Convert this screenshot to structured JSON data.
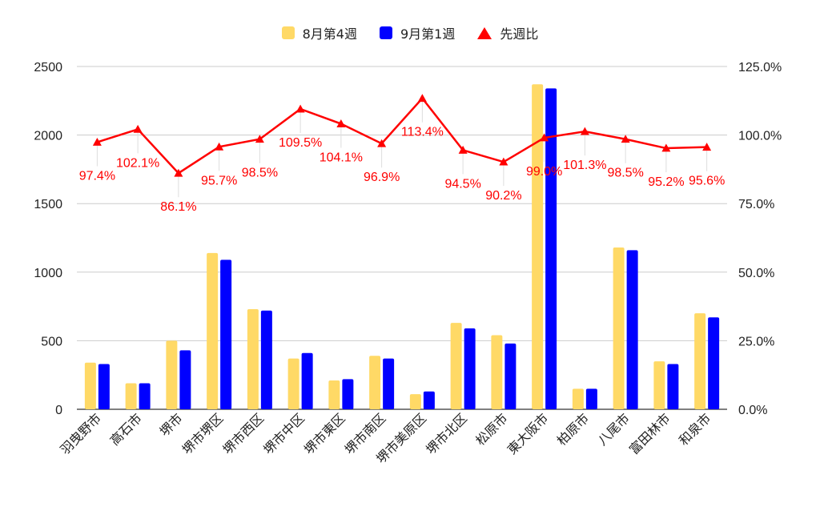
{
  "chart_data": {
    "type": "bar",
    "categories": [
      "羽曳野市",
      "高石市",
      "堺市",
      "堺市堺区",
      "堺市西区",
      "堺市中区",
      "堺市東区",
      "堺市南区",
      "堺市美原区",
      "堺市北区",
      "松原市",
      "東大阪市",
      "柏原市",
      "八尾市",
      "富田林市",
      "和泉市"
    ],
    "series": [
      {
        "name": "8月第4週",
        "type": "bar",
        "axis": "left",
        "color": "#ffd966",
        "values": [
          340,
          190,
          500,
          1140,
          730,
          370,
          210,
          390,
          110,
          630,
          540,
          2370,
          150,
          1180,
          350,
          700
        ]
      },
      {
        "name": "9月第1週",
        "type": "bar",
        "axis": "left",
        "color": "#0000ff",
        "values": [
          330,
          190,
          430,
          1090,
          720,
          410,
          220,
          370,
          130,
          590,
          480,
          2340,
          150,
          1160,
          330,
          670
        ]
      },
      {
        "name": "先週比",
        "type": "line",
        "axis": "right",
        "color": "#ff0000",
        "values": [
          97.4,
          102.1,
          86.1,
          95.7,
          98.5,
          109.5,
          104.1,
          96.9,
          113.4,
          94.5,
          90.2,
          99.0,
          101.3,
          98.5,
          95.2,
          95.6
        ],
        "labels": [
          "97.4%",
          "102.1%",
          "86.1%",
          "95.7%",
          "98.5%",
          "109.5%",
          "104.1%",
          "96.9%",
          "113.4%",
          "94.5%",
          "90.2%",
          "99.0%",
          "101.3%",
          "98.5%",
          "95.2%",
          "95.6%"
        ]
      }
    ],
    "y_left": {
      "min": 0,
      "max": 2500,
      "ticks": [
        0,
        500,
        1000,
        1500,
        2000,
        2500
      ],
      "tick_labels": [
        "0",
        "500",
        "1000",
        "1500",
        "2000",
        "2500"
      ]
    },
    "y_right": {
      "min": 0,
      "max": 125,
      "ticks": [
        0,
        25,
        50,
        75,
        100,
        125
      ],
      "tick_labels": [
        "0.0%",
        "25.0%",
        "50.0%",
        "75.0%",
        "100.0%",
        "125.0%"
      ]
    },
    "grid": true,
    "legend_position": "top"
  },
  "colors": {
    "bar1": "#ffd966",
    "bar2": "#0000ff",
    "line": "#ff0000",
    "grid": "#cccccc",
    "axis": "#333333"
  }
}
